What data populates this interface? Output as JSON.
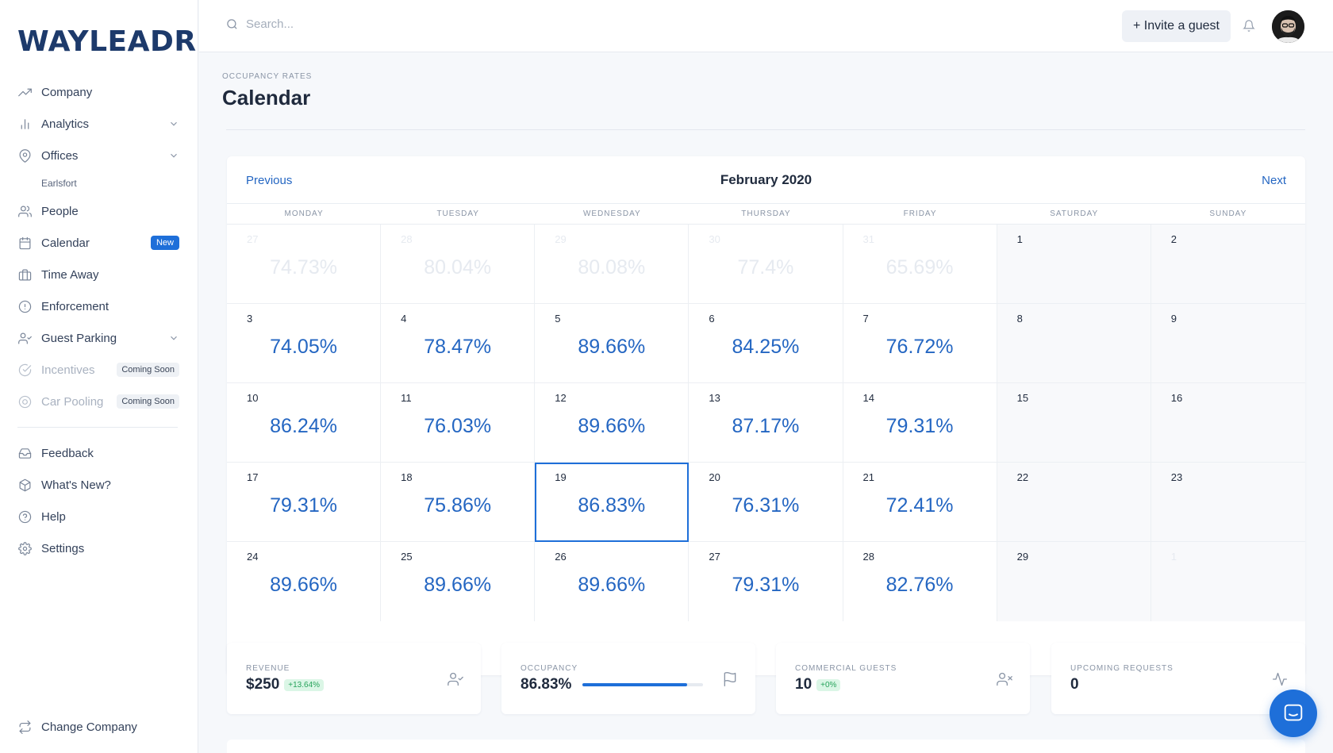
{
  "brand": {
    "logo_text": "WAYLEADR"
  },
  "sidebar": {
    "items": [
      {
        "label": "Company",
        "icon": "trending-up-icon"
      },
      {
        "label": "Analytics",
        "icon": "bar-chart-icon",
        "has_chevron": true
      },
      {
        "label": "Offices",
        "icon": "map-pin-icon",
        "has_chevron": true
      },
      {
        "label": "Earlsfort",
        "sub": true
      },
      {
        "label": "People",
        "icon": "users-icon"
      },
      {
        "label": "Calendar",
        "icon": "calendar-icon",
        "badge": "New"
      },
      {
        "label": "Time Away",
        "icon": "briefcase-icon"
      },
      {
        "label": "Enforcement",
        "icon": "alert-circle-icon"
      },
      {
        "label": "Guest Parking",
        "icon": "user-check-icon",
        "has_chevron": true
      },
      {
        "label": "Incentives",
        "icon": "check-circle-icon",
        "badge": "Coming Soon",
        "disabled": true
      },
      {
        "label": "Car Pooling",
        "icon": "target-icon",
        "badge": "Coming Soon",
        "disabled": true
      }
    ],
    "secondary": [
      {
        "label": "Feedback",
        "icon": "inbox-icon"
      },
      {
        "label": "What's New?",
        "icon": "package-icon"
      },
      {
        "label": "Help",
        "icon": "help-circle-icon"
      },
      {
        "label": "Settings",
        "icon": "settings-icon"
      }
    ],
    "change_company": {
      "label": "Change Company",
      "icon": "repeat-icon"
    }
  },
  "topbar": {
    "search_placeholder": "Search...",
    "invite_label": "+ Invite a guest"
  },
  "page": {
    "eyebrow": "OCCUPANCY RATES",
    "title": "Calendar"
  },
  "calendar": {
    "prev_label": "Previous",
    "next_label": "Next",
    "month_label": "February 2020",
    "weekdays": [
      "MONDAY",
      "TUESDAY",
      "WEDNESDAY",
      "THURSDAY",
      "FRIDAY",
      "SATURDAY",
      "SUNDAY"
    ],
    "weeks": [
      [
        {
          "day": "27",
          "value": "74.73%",
          "outside": true
        },
        {
          "day": "28",
          "value": "80.04%",
          "outside": true
        },
        {
          "day": "29",
          "value": "80.08%",
          "outside": true
        },
        {
          "day": "30",
          "value": "77.4%",
          "outside": true
        },
        {
          "day": "31",
          "value": "65.69%",
          "outside": true
        },
        {
          "day": "1",
          "value": "",
          "weekend": true
        },
        {
          "day": "2",
          "value": "",
          "weekend": true
        }
      ],
      [
        {
          "day": "3",
          "value": "74.05%"
        },
        {
          "day": "4",
          "value": "78.47%"
        },
        {
          "day": "5",
          "value": "89.66%"
        },
        {
          "day": "6",
          "value": "84.25%"
        },
        {
          "day": "7",
          "value": "76.72%"
        },
        {
          "day": "8",
          "value": "",
          "weekend": true
        },
        {
          "day": "9",
          "value": "",
          "weekend": true
        }
      ],
      [
        {
          "day": "10",
          "value": "86.24%"
        },
        {
          "day": "11",
          "value": "76.03%"
        },
        {
          "day": "12",
          "value": "89.66%"
        },
        {
          "day": "13",
          "value": "87.17%"
        },
        {
          "day": "14",
          "value": "79.31%"
        },
        {
          "day": "15",
          "value": "",
          "weekend": true
        },
        {
          "day": "16",
          "value": "",
          "weekend": true
        }
      ],
      [
        {
          "day": "17",
          "value": "79.31%"
        },
        {
          "day": "18",
          "value": "75.86%"
        },
        {
          "day": "19",
          "value": "86.83%",
          "selected": true
        },
        {
          "day": "20",
          "value": "76.31%"
        },
        {
          "day": "21",
          "value": "72.41%"
        },
        {
          "day": "22",
          "value": "",
          "weekend": true
        },
        {
          "day": "23",
          "value": "",
          "weekend": true
        }
      ],
      [
        {
          "day": "24",
          "value": "89.66%"
        },
        {
          "day": "25",
          "value": "89.66%"
        },
        {
          "day": "26",
          "value": "89.66%"
        },
        {
          "day": "27",
          "value": "79.31%"
        },
        {
          "day": "28",
          "value": "82.76%"
        },
        {
          "day": "29",
          "value": "",
          "weekend": true
        },
        {
          "day": "1",
          "value": "",
          "outside": true,
          "weekend": true
        }
      ]
    ]
  },
  "stats": [
    {
      "label": "REVENUE",
      "value": "$250",
      "chip": "+13.64%",
      "icon": "user-check-icon"
    },
    {
      "label": "OCCUPANCY",
      "value": "86.83%",
      "progress": 0.8683,
      "icon": "flag-icon"
    },
    {
      "label": "COMMERCIAL GUESTS",
      "value": "10",
      "chip": "+0%",
      "icon": "user-x-icon"
    },
    {
      "label": "UPCOMING REQUESTS",
      "value": "0",
      "icon": "activity-icon"
    }
  ],
  "colors": {
    "accent": "#1e6fd9",
    "link": "#2466c2",
    "logo": "#1d3a6b",
    "success_bg": "#dbf6e6",
    "success_text": "#27a35b"
  }
}
